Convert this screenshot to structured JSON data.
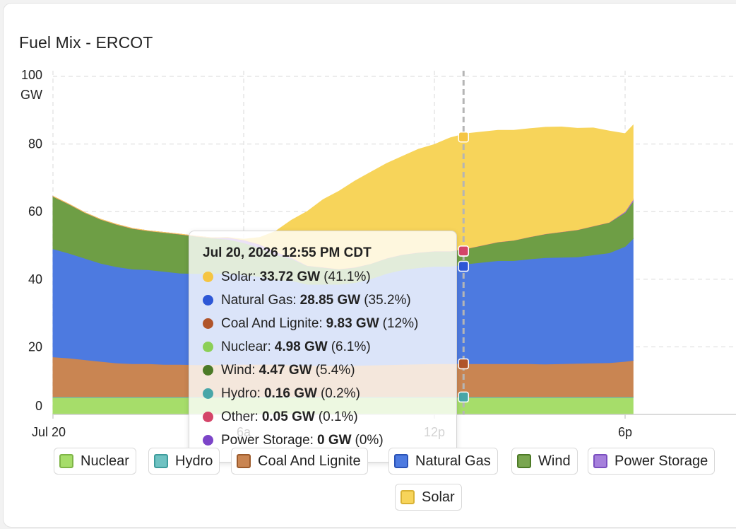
{
  "card": {
    "title": "Fuel Mix - ERCOT"
  },
  "chart_data": {
    "type": "area",
    "stacked": true,
    "title": "Fuel Mix - ERCOT",
    "ylabel": "GW",
    "ylim": [
      0,
      100
    ],
    "y_ticks": [
      "0",
      "20",
      "40",
      "60",
      "80",
      "100"
    ],
    "y_unit_label": "GW",
    "x_hours": [
      0,
      0.5,
      1,
      1.5,
      2,
      2.5,
      3,
      3.5,
      4,
      4.5,
      5,
      5.5,
      6,
      6.5,
      7,
      7.5,
      8,
      8.5,
      9,
      9.5,
      10,
      10.5,
      11,
      11.5,
      12,
      12.5,
      13,
      13.5,
      14,
      14.5,
      15,
      15.5,
      16,
      16.5,
      17,
      17.5,
      18,
      18.25
    ],
    "x_ticks": [
      {
        "hour": 0,
        "label": "Jul 20"
      },
      {
        "hour": 6,
        "label": "6a"
      },
      {
        "hour": 12,
        "label": "12p"
      },
      {
        "hour": 18,
        "label": "6p"
      }
    ],
    "x_max_hour": 21.4,
    "crosshair_hour": 12.917,
    "series": [
      {
        "name": "Nuclear",
        "color": "#a6dd6a",
        "values": [
          5,
          5,
          5,
          5,
          5,
          5,
          5,
          5,
          5,
          5,
          5,
          5,
          5,
          5,
          5,
          5,
          5,
          5,
          5,
          5,
          5,
          5,
          5,
          5,
          5,
          5,
          5,
          5,
          5,
          5,
          5,
          5,
          5,
          5,
          5,
          5,
          5,
          5
        ]
      },
      {
        "name": "Hydro",
        "color": "#5bbcbc",
        "values": [
          0.2,
          0.2,
          0.2,
          0.2,
          0.2,
          0.2,
          0.2,
          0.2,
          0.2,
          0.2,
          0.2,
          0.2,
          0.2,
          0.2,
          0.2,
          0.2,
          0.2,
          0.2,
          0.2,
          0.2,
          0.2,
          0.2,
          0.2,
          0.2,
          0.2,
          0.2,
          0.2,
          0.2,
          0.2,
          0.2,
          0.2,
          0.2,
          0.2,
          0.2,
          0.2,
          0.2,
          0.2,
          0.2
        ]
      },
      {
        "name": "Coal And Lignite",
        "color": "#c98552",
        "values": [
          11.8,
          11.5,
          11.0,
          10.5,
          10.0,
          9.8,
          9.8,
          9.6,
          9.6,
          9.5,
          9.5,
          9.6,
          9.6,
          9.6,
          9.6,
          9.4,
          9.3,
          9.3,
          9.3,
          9.3,
          9.4,
          9.5,
          9.6,
          9.7,
          9.8,
          9.8,
          9.8,
          9.8,
          9.8,
          9.8,
          9.8,
          9.7,
          9.8,
          9.9,
          10.0,
          10.1,
          10.5,
          10.8
        ]
      },
      {
        "name": "Natural Gas",
        "color": "#4d7ae0",
        "values": [
          32,
          31,
          30,
          29,
          28.5,
          28,
          27.8,
          27.5,
          27,
          27,
          27,
          27,
          26.5,
          26,
          25,
          25,
          24,
          24,
          24,
          24.5,
          25.5,
          27,
          28,
          28.5,
          28.8,
          28.8,
          29.5,
          30,
          30.5,
          30.5,
          31,
          31.5,
          31.5,
          31.5,
          32,
          32.5,
          34,
          36
        ]
      },
      {
        "name": "Wind",
        "color": "#6e9e45",
        "values": [
          15.5,
          14.5,
          13.5,
          13,
          12.5,
          12,
          11.5,
          11.5,
          11.5,
          11,
          10.5,
          10,
          9.5,
          8.5,
          7.5,
          6.5,
          5.5,
          5,
          4.5,
          4.5,
          4.5,
          4.5,
          4.5,
          4.5,
          4.5,
          4.5,
          4.5,
          5,
          5.5,
          6,
          6.5,
          7,
          7.5,
          8,
          8.5,
          9,
          10,
          11
        ]
      },
      {
        "name": "Power Storage",
        "color": "#9b6fd3",
        "values": [
          0,
          0,
          0,
          0,
          0,
          0,
          0,
          0,
          0,
          0,
          0,
          0.5,
          0.8,
          1.0,
          0.8,
          0.3,
          0,
          0,
          0,
          0,
          0,
          0,
          0,
          0,
          0,
          0,
          0,
          0,
          0,
          0,
          0,
          0,
          0,
          0,
          0,
          0,
          0.3,
          0.5
        ]
      },
      {
        "name": "Other",
        "color": "#d64d72",
        "values": [
          0.05,
          0.05,
          0.05,
          0.05,
          0.05,
          0.05,
          0.05,
          0.05,
          0.05,
          0.05,
          0.05,
          0.05,
          0.05,
          0.05,
          0.05,
          0.05,
          0.05,
          0.05,
          0.05,
          0.05,
          0.05,
          0.05,
          0.05,
          0.05,
          0.05,
          0.05,
          0.05,
          0.05,
          0.05,
          0.05,
          0.05,
          0.05,
          0.05,
          0.05,
          0.05,
          0.05,
          0.05,
          0.05
        ]
      },
      {
        "name": "Solar",
        "color": "#f7d45a",
        "values": [
          0,
          0,
          0,
          0,
          0,
          0,
          0,
          0,
          0,
          0,
          0,
          0,
          0.2,
          2,
          6,
          11,
          16,
          20,
          23,
          25.5,
          27,
          28,
          29,
          30.5,
          31.5,
          33.5,
          34,
          33.5,
          33,
          32.5,
          32,
          31.5,
          31,
          30,
          29,
          27,
          23,
          22
        ]
      }
    ]
  },
  "tooltip": {
    "title": "Jul 20, 2026 12:55 PM CDT",
    "rows": [
      {
        "label": "Solar:",
        "value": "33.72 GW",
        "pct": "(41.1%)",
        "color": "#f5c542"
      },
      {
        "label": "Natural Gas:",
        "value": "28.85 GW",
        "pct": "(35.2%)",
        "color": "#2d57d6"
      },
      {
        "label": "Coal And Lignite:",
        "value": "9.83 GW",
        "pct": "(12%)",
        "color": "#b0542a"
      },
      {
        "label": "Nuclear:",
        "value": "4.98 GW",
        "pct": "(6.1%)",
        "color": "#8ccf57"
      },
      {
        "label": "Wind:",
        "value": "4.47 GW",
        "pct": "(5.4%)",
        "color": "#4b7a27"
      },
      {
        "label": "Hydro:",
        "value": "0.16 GW",
        "pct": "(0.2%)",
        "color": "#48a6a8"
      },
      {
        "label": "Other:",
        "value": "0.05 GW",
        "pct": "(0.1%)",
        "color": "#d44569"
      },
      {
        "label": "Power Storage:",
        "value": "0 GW",
        "pct": "(0%)",
        "color": "#7c45c8"
      }
    ]
  },
  "legend": [
    {
      "label": "Nuclear",
      "fill": "#a6dd6a",
      "border": "#7fb547"
    },
    {
      "label": "Hydro",
      "fill": "#6fc2c2",
      "border": "#3e9c9c"
    },
    {
      "label": "Coal And Lignite",
      "fill": "#c98552",
      "border": "#9c5b2c"
    },
    {
      "label": "Natural Gas",
      "fill": "#4d7ae0",
      "border": "#2b53b6"
    },
    {
      "label": "Wind",
      "fill": "#7aa650",
      "border": "#4d7a27"
    },
    {
      "label": "Power Storage",
      "fill": "#a680dc",
      "border": "#7b4fc0"
    },
    {
      "label": "Solar",
      "fill": "#f7d45a",
      "border": "#d9b234"
    }
  ]
}
